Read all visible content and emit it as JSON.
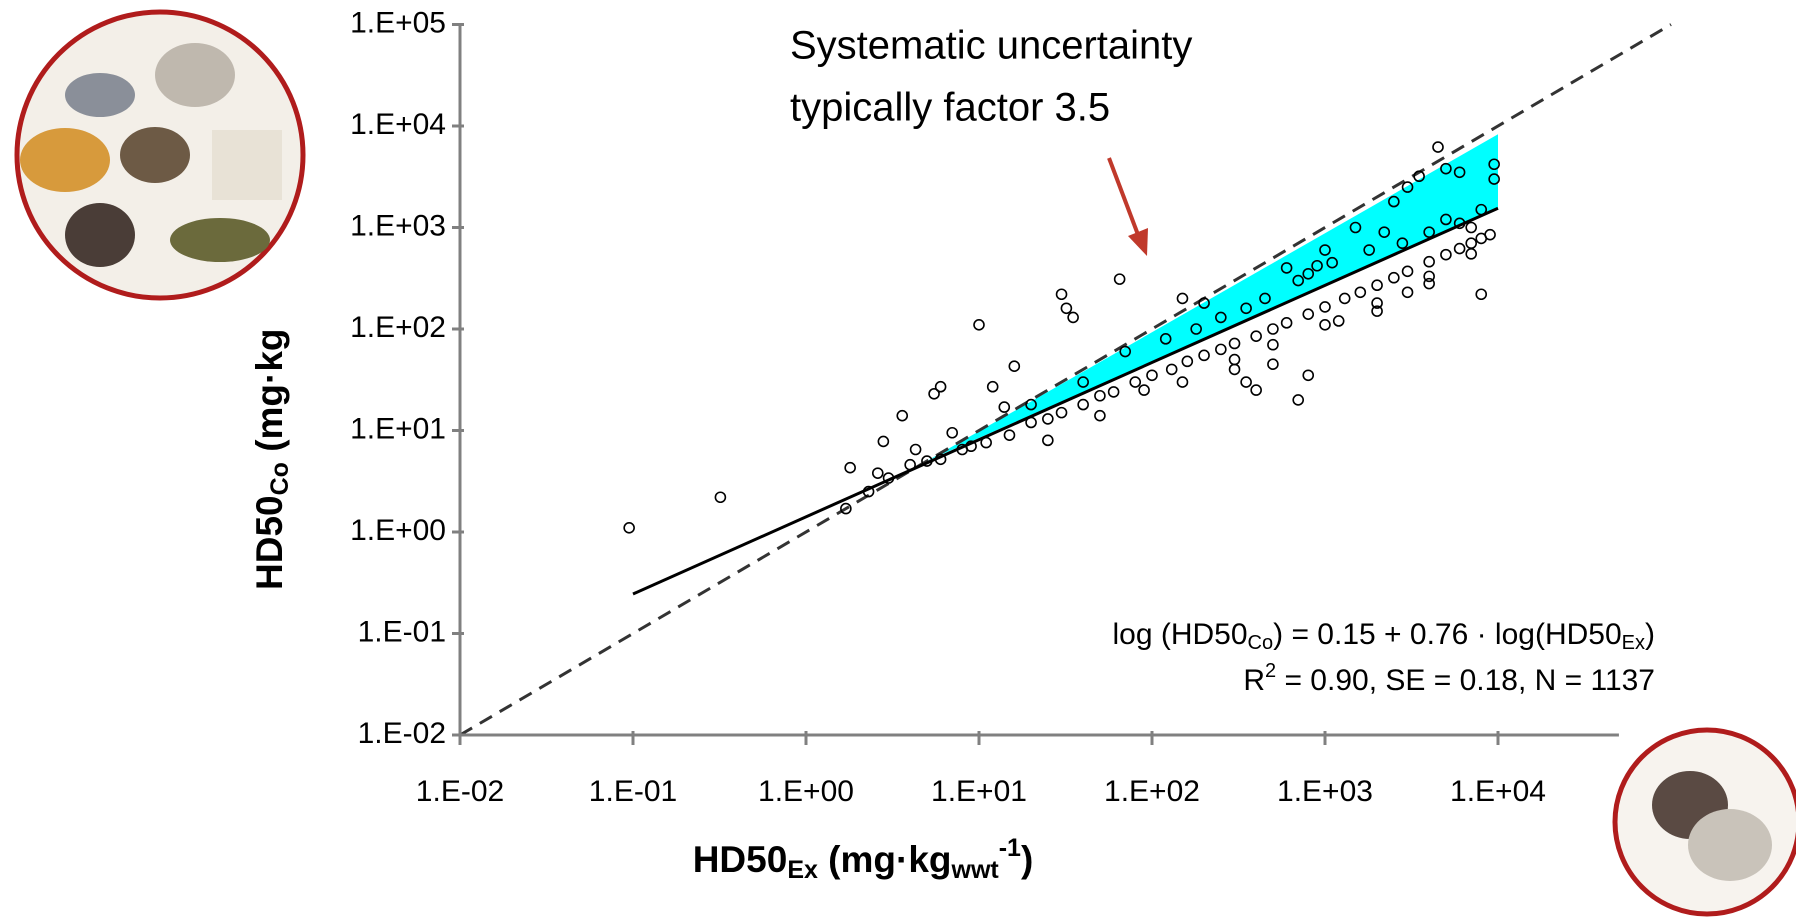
{
  "chart_data": {
    "type": "scatter",
    "annotation": [
      "Systematic uncertainty",
      "typically  factor 3.5"
    ],
    "equation": {
      "lhs_a": "log (HD50",
      "lhs_sub": "Co",
      "rhs_a": ") = 0.15 + 0.76 · log(HD50",
      "rhs_sub": "Ex",
      "rhs_b": ")",
      "stats_a": "R",
      "stats_sup": "2",
      "stats_b": " = 0.90, SE = 0.18, N = 1137"
    },
    "y_label": {
      "main": "HD50",
      "sub": "Co",
      "rest": " (mg·kg"
    },
    "x_label": {
      "main": "HD50",
      "sub": "Ex",
      "rest": " (mg·kg",
      "sub2": "wwt",
      "sup": "-1",
      "end": ")"
    },
    "xscale": "log",
    "yscale": "log",
    "xlim": [
      0.01,
      50000
    ],
    "ylim": [
      0.01,
      100000
    ],
    "xticks": [
      {
        "value": 0.01,
        "label": "1.E-02"
      },
      {
        "value": 0.1,
        "label": "1.E-01"
      },
      {
        "value": 1,
        "label": "1.E+00"
      },
      {
        "value": 10,
        "label": "1.E+01"
      },
      {
        "value": 100,
        "label": "1.E+02"
      },
      {
        "value": 1000,
        "label": "1.E+03"
      },
      {
        "value": 10000,
        "label": "1.E+04"
      }
    ],
    "yticks": [
      {
        "value": 0.01,
        "label": "1.E-02"
      },
      {
        "value": 0.1,
        "label": "1.E-01"
      },
      {
        "value": 1,
        "label": "1.E+00"
      },
      {
        "value": 10,
        "label": "1.E+01"
      },
      {
        "value": 100,
        "label": "1.E+02"
      },
      {
        "value": 1000,
        "label": "1.E+03"
      },
      {
        "value": 10000,
        "label": "1.E+04"
      },
      {
        "value": 100000,
        "label": "1.E+05"
      }
    ],
    "band": {
      "color": "#00ffff",
      "x": [
        5,
        10000
      ],
      "upper": [
        5,
        8300
      ],
      "lower": [
        5,
        1549
      ]
    },
    "identity_line": {
      "color": "#333333",
      "x": [
        0.01,
        100000
      ],
      "y": [
        0.01,
        100000
      ]
    },
    "regression_line": {
      "color": "#000000",
      "x": [
        0.1,
        10000
      ],
      "y": [
        0.245,
        1549
      ]
    },
    "points": {
      "color": "#000000",
      "x": [
        0.095,
        0.32,
        1.8,
        2.6,
        2.8,
        3.6,
        4.3,
        5.5,
        6,
        7,
        10,
        12,
        14,
        16,
        30,
        32,
        35,
        65,
        150,
        200,
        300,
        350,
        400,
        500,
        700,
        800,
        1200,
        2000,
        3000,
        4000,
        4500,
        5000,
        6000,
        7000,
        8000,
        9500,
        9500,
        3500,
        3000,
        2500,
        1500,
        1000,
        800,
        600,
        2200,
        5000,
        1.7,
        2.3,
        3,
        4,
        5,
        6,
        8,
        9,
        11,
        15,
        20,
        25,
        30,
        40,
        50,
        60,
        80,
        100,
        130,
        160,
        200,
        250,
        300,
        400,
        500,
        600,
        800,
        1000,
        1300,
        1600,
        2000,
        2500,
        3000,
        4000,
        5000,
        6000,
        7000,
        8000,
        9000,
        20,
        40,
        70,
        120,
        180,
        250,
        350,
        450,
        700,
        900,
        1100,
        1800,
        2800,
        4000,
        6000,
        8000,
        25,
        50,
        90,
        150,
        300,
        500,
        1000,
        2000,
        4000,
        7000
      ],
      "y": [
        1.1,
        2.2,
        4.3,
        3.8,
        7.8,
        14,
        6.5,
        23,
        27,
        9.5,
        110,
        27,
        17,
        43,
        220,
        160,
        130,
        310,
        200,
        180,
        40,
        30,
        25,
        45,
        20,
        35,
        120,
        150,
        230,
        280,
        6200,
        3800,
        3500,
        1000,
        220,
        4200,
        3000,
        3200,
        2500,
        1800,
        1000,
        600,
        350,
        400,
        900,
        1200,
        1.7,
        2.5,
        3.4,
        4.6,
        5,
        5.2,
        6.5,
        7,
        7.6,
        9,
        12,
        13,
        15,
        18,
        22,
        24,
        30,
        35,
        40,
        48,
        55,
        63,
        72,
        85,
        100,
        115,
        140,
        165,
        200,
        230,
        270,
        320,
        370,
        460,
        540,
        620,
        700,
        780,
        850,
        18,
        30,
        60,
        80,
        100,
        130,
        160,
        200,
        300,
        420,
        450,
        600,
        700,
        900,
        1100,
        1500,
        8,
        14,
        25,
        30,
        50,
        70,
        110,
        180,
        330,
        550
      ]
    }
  }
}
